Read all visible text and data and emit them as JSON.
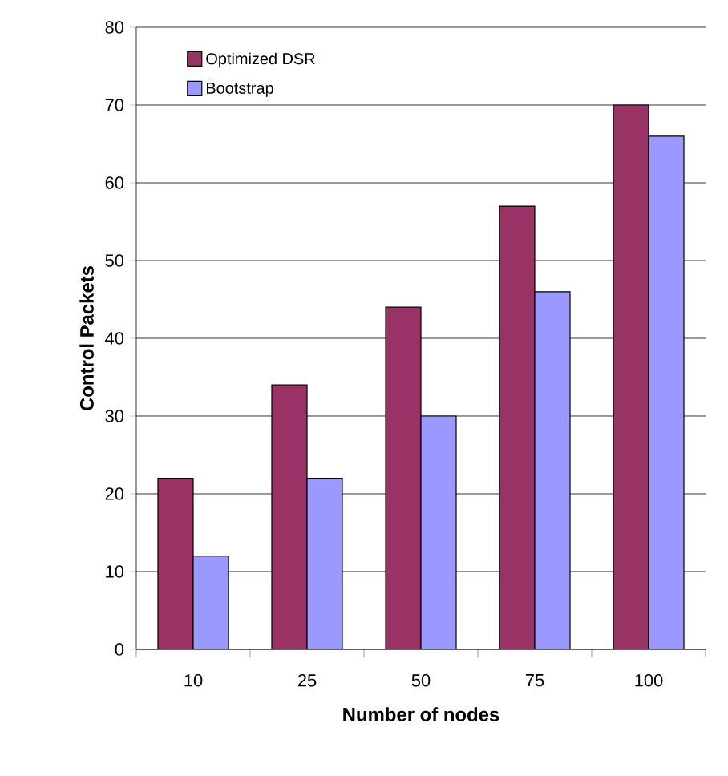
{
  "chart_data": {
    "type": "bar",
    "xlabel": "Number of nodes",
    "ylabel": "Control Packets",
    "categories": [
      "10",
      "25",
      "50",
      "75",
      "100"
    ],
    "series": [
      {
        "name": "Optimized DSR",
        "color": "#993366",
        "values": [
          22,
          34,
          44,
          57,
          70
        ]
      },
      {
        "name": "Bootstrap",
        "color": "#9999ff",
        "values": [
          12,
          22,
          30,
          46,
          66
        ]
      }
    ],
    "ylim": [
      0,
      80
    ],
    "yticks": [
      0,
      10,
      20,
      30,
      40,
      50,
      60,
      70,
      80
    ],
    "grid": "y",
    "legend": "top left"
  }
}
